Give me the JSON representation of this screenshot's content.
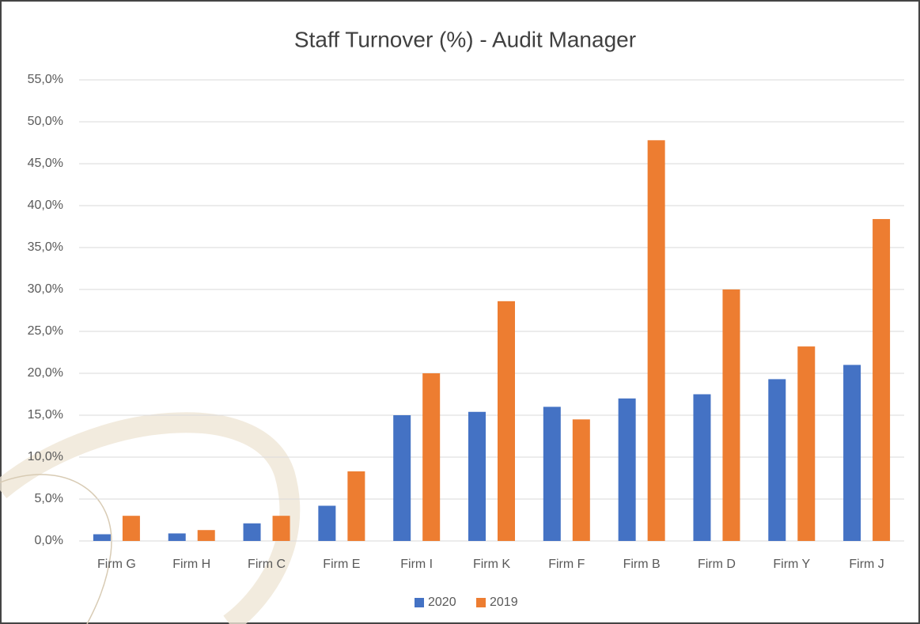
{
  "chart_data": {
    "type": "bar",
    "title": "Staff Turnover (%) - Audit Manager",
    "categories": [
      "Firm G",
      "Firm H",
      "Firm C",
      "Firm E",
      "Firm I",
      "Firm K",
      "Firm F",
      "Firm B",
      "Firm D",
      "Firm Y",
      "Firm J"
    ],
    "series": [
      {
        "name": "2020",
        "color": "#4472c4",
        "values": [
          0.8,
          0.9,
          2.1,
          4.2,
          15.0,
          15.4,
          16.0,
          17.0,
          17.5,
          19.3,
          21.0
        ]
      },
      {
        "name": "2019",
        "color": "#ed7d31",
        "values": [
          3.0,
          1.3,
          3.0,
          8.3,
          20.0,
          28.6,
          14.5,
          47.8,
          30.0,
          23.2,
          38.4
        ]
      }
    ],
    "ylim": [
      0,
      55
    ],
    "yticks": [
      {
        "value": 0,
        "label": "0,0%"
      },
      {
        "value": 5,
        "label": "5,0%"
      },
      {
        "value": 10,
        "label": "10,0%"
      },
      {
        "value": 15,
        "label": "15,0%"
      },
      {
        "value": 20,
        "label": "20,0%"
      },
      {
        "value": 25,
        "label": "25,0%"
      },
      {
        "value": 30,
        "label": "30,0%"
      },
      {
        "value": 35,
        "label": "35,0%"
      },
      {
        "value": 40,
        "label": "40,0%"
      },
      {
        "value": 45,
        "label": "45,0%"
      },
      {
        "value": 50,
        "label": "50,0%"
      },
      {
        "value": 55,
        "label": "55,0%"
      }
    ],
    "grid": true,
    "legend": "bottom"
  }
}
